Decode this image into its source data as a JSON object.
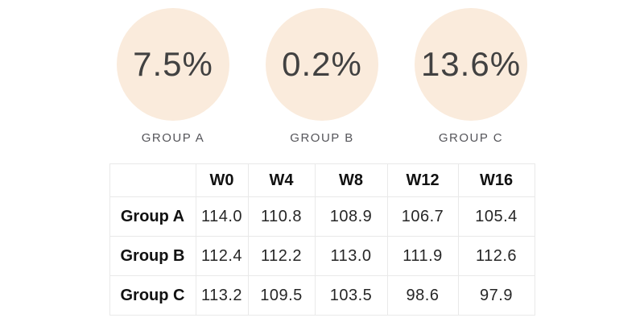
{
  "theme": {
    "background": "#ffffff",
    "circle-fill": "#faebdc",
    "value-color": "#414141",
    "label-color": "#55555a",
    "table-border": "#e9e9e9",
    "text-dark": "#111111",
    "number-color": "#262626"
  },
  "stats": {
    "items": [
      {
        "value": "7.5%",
        "label": "GROUP A"
      },
      {
        "value": "0.2%",
        "label": "GROUP B"
      },
      {
        "value": "13.6%",
        "label": "GROUP C"
      }
    ]
  },
  "table": {
    "columns": [
      "",
      "W0",
      "W4",
      "W8",
      "W12",
      "W16"
    ],
    "rows": [
      {
        "label": "Group A",
        "values": [
          "114.0",
          "110.8",
          "108.9",
          "106.7",
          "105.4"
        ]
      },
      {
        "label": "Group B",
        "values": [
          "112.4",
          "112.2",
          "113.0",
          "111.9",
          "112.6"
        ]
      },
      {
        "label": "Group C",
        "values": [
          "113.2",
          "109.5",
          "103.5",
          "98.6",
          "97.9"
        ]
      }
    ]
  },
  "chart_data": {
    "type": "table",
    "columns": [
      "W0",
      "W4",
      "W8",
      "W12",
      "W16"
    ],
    "rows": [
      {
        "name": "Group A",
        "values": [
          114.0,
          110.8,
          108.9,
          106.7,
          105.4
        ]
      },
      {
        "name": "Group B",
        "values": [
          112.4,
          112.2,
          113.0,
          111.9,
          112.6
        ]
      },
      {
        "name": "Group C",
        "values": [
          113.2,
          109.5,
          103.5,
          98.6,
          97.9
        ]
      }
    ],
    "highlight_percentages": [
      {
        "group": "GROUP A",
        "value": 7.5
      },
      {
        "group": "GROUP B",
        "value": 0.2
      },
      {
        "group": "GROUP C",
        "value": 13.6
      }
    ]
  }
}
